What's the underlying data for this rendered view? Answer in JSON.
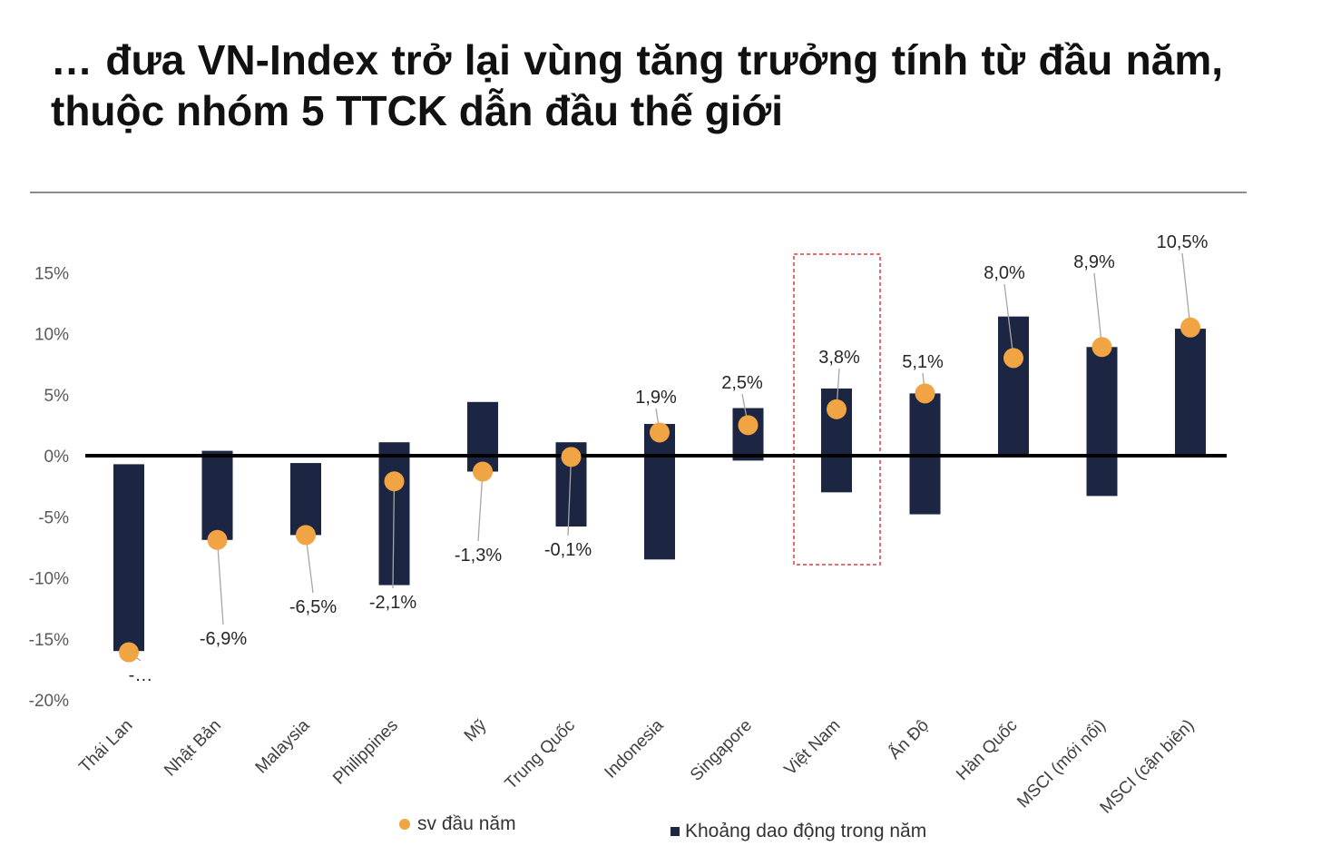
{
  "title": "… đưa VN-Index trở lại vùng tăng trưởng tính từ đầu năm, thuộc nhóm 5 TTCK dẫn đầu thế giới",
  "colors": {
    "bar": "#1c2541",
    "dot": "#f0a444",
    "highlight_box": "#e03c3c",
    "zero_line": "#000000",
    "leader": "#a6a6a6"
  },
  "chart_data": {
    "type": "bar",
    "subtype": "floating-range-with-markers",
    "categories": [
      "Thái Lan",
      "Nhật Bản",
      "Malaysia",
      "Philippines",
      "Mỹ",
      "Trung Quốc",
      "Indonesia",
      "Singapore",
      "Việt Nam",
      "Ấn Độ",
      "Hàn Quốc",
      "MSCI (mới nổi)",
      "MSCI (cận biên)"
    ],
    "range_series": {
      "name": "Khoảng dao động trong năm",
      "low": [
        -16.0,
        -6.9,
        -6.5,
        -10.6,
        -1.3,
        -5.8,
        -8.5,
        -0.4,
        -3.0,
        -4.8,
        0.0,
        -3.3,
        0.0
      ],
      "high": [
        -0.7,
        0.4,
        -0.6,
        1.1,
        4.4,
        1.1,
        2.6,
        3.9,
        5.5,
        5.1,
        11.4,
        8.9,
        10.4
      ]
    },
    "marker_series": {
      "name": "sv đầu năm",
      "values": [
        -16.1,
        -6.9,
        -6.5,
        -2.1,
        -1.3,
        -0.1,
        1.9,
        2.5,
        3.8,
        5.1,
        8.0,
        8.9,
        10.5
      ],
      "labels": [
        "-…",
        "-6,9%",
        "-6,5%",
        "-2,1%",
        "-1,3%",
        "-0,1%",
        "1,9%",
        "2,5%",
        "3,8%",
        "5,1%",
        "8,0%",
        "8,9%",
        "10,5%"
      ]
    },
    "y_ticks": [
      15,
      10,
      5,
      0,
      -5,
      -10,
      -15,
      -20
    ],
    "y_tick_labels": [
      "15%",
      "10%",
      "5%",
      "0%",
      "-5%",
      "-10%",
      "-15%",
      "-20%"
    ],
    "ylim": [
      -20,
      15
    ],
    "highlight_category": "Việt Nam",
    "grid": false,
    "legend_position": "bottom"
  }
}
